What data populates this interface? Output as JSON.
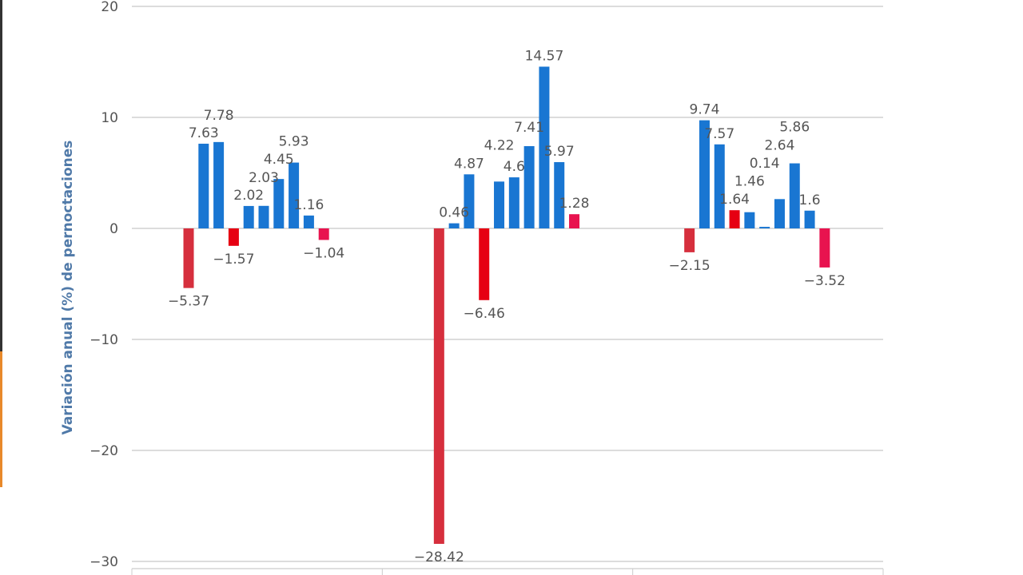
{
  "chart_data": {
    "type": "bar",
    "title": "",
    "xlabel": "",
    "ylabel": "Variación anual (%) de pernoctaciones",
    "ylim": [
      -30,
      20
    ],
    "yticks": [
      20,
      10,
      0,
      -10,
      -20,
      -30
    ],
    "ytick_labels": [
      "20",
      "10",
      "0",
      "−10",
      "−20",
      "−30"
    ],
    "grid": true,
    "categories": [
      "",
      "",
      ""
    ],
    "series": [
      {
        "name": "s1",
        "color": "#d62f3d",
        "values": [
          -5.37,
          -28.42,
          -2.15
        ]
      },
      {
        "name": "s2",
        "color": "#1976d2",
        "values": [
          7.63,
          0.46,
          9.74
        ]
      },
      {
        "name": "s3",
        "color": "#1976d2",
        "values": [
          7.78,
          4.87,
          7.57
        ]
      },
      {
        "name": "s4",
        "color": "#e60012",
        "values": [
          -1.57,
          -6.46,
          1.64
        ]
      },
      {
        "name": "s5",
        "color": "#1976d2",
        "values": [
          2.02,
          4.22,
          1.46
        ]
      },
      {
        "name": "s6",
        "color": "#1976d2",
        "values": [
          2.03,
          4.6,
          0.14
        ]
      },
      {
        "name": "s7",
        "color": "#1976d2",
        "values": [
          4.45,
          7.41,
          2.64
        ]
      },
      {
        "name": "s8",
        "color": "#1976d2",
        "values": [
          5.93,
          14.57,
          5.86
        ]
      },
      {
        "name": "s9",
        "color": "#1976d2",
        "values": [
          1.16,
          5.97,
          1.6
        ]
      },
      {
        "name": "s10",
        "color": "#e8134f",
        "values": [
          -1.04,
          1.28,
          -3.52
        ]
      }
    ]
  }
}
